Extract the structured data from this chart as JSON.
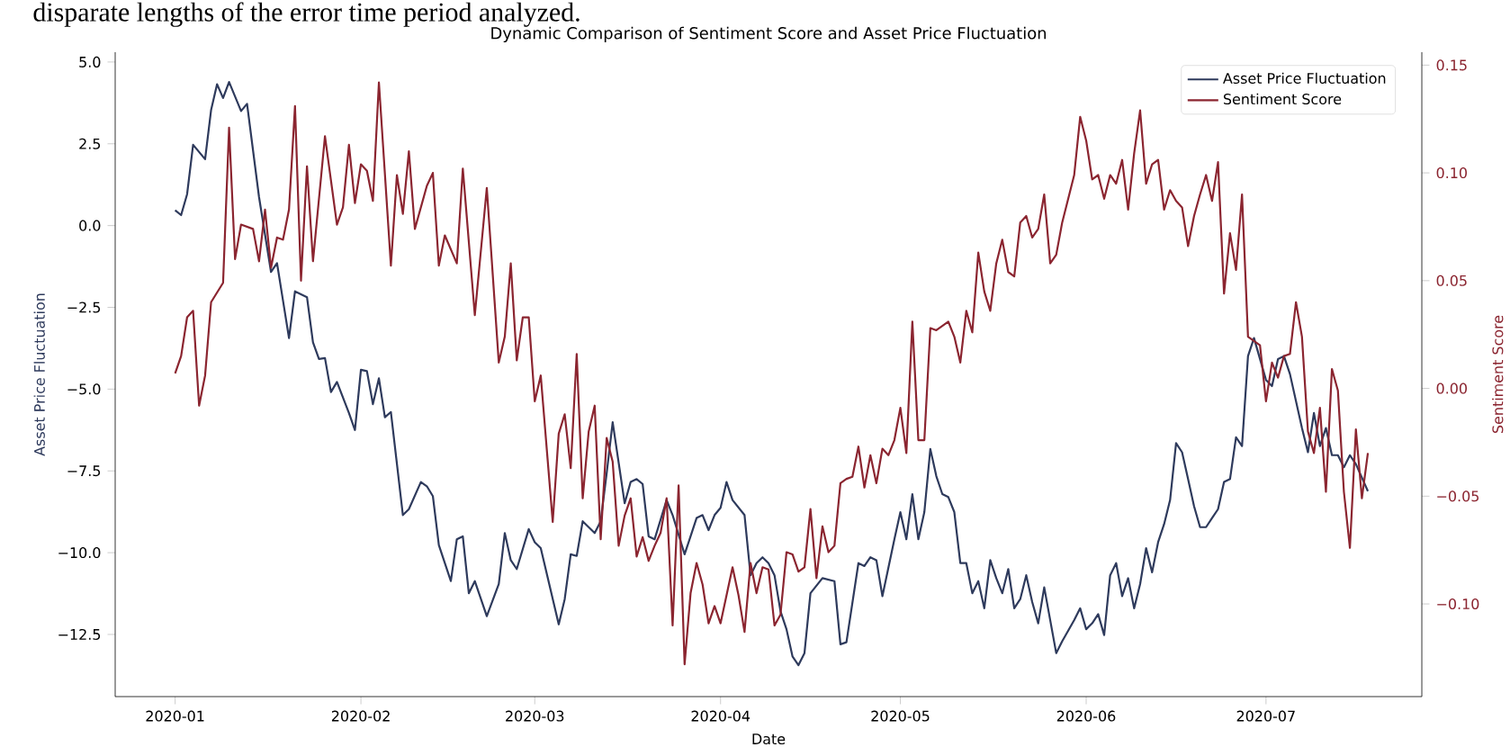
{
  "chart_data": {
    "type": "line",
    "title": "Dynamic Comparison of Sentiment Score and Asset Price Fluctuation",
    "xlabel": "Date",
    "ylabel": "Asset Price Fluctuation",
    "y2label": "Sentiment Score",
    "annotations": [
      "disparate lengths of the error time period analyzed."
    ],
    "legend": "top right",
    "marker": "none",
    "line_style": "solid",
    "xlim": [
      "2019-12-22",
      "2020-07-27"
    ],
    "xticks": [
      "2020-01",
      "2020-02",
      "2020-03",
      "2020-04",
      "2020-05",
      "2020-06",
      "2020-07"
    ],
    "ylim": [
      -14.4,
      5.3
    ],
    "yticks": [
      {
        "value": -12.5,
        "label": "−12.5"
      },
      {
        "value": -10,
        "label": "−10.0"
      },
      {
        "value": -7.5,
        "label": "−7.5"
      },
      {
        "value": -5,
        "label": "−5.0"
      },
      {
        "value": -2.5,
        "label": "−2.5"
      },
      {
        "value": 0,
        "label": "0.0"
      },
      {
        "value": 2.5,
        "label": "2.5"
      },
      {
        "value": 5,
        "label": "5.0"
      }
    ],
    "y2lim": [
      -0.143,
      0.156
    ],
    "y2ticks": [
      {
        "value": -0.1,
        "label": "−0.10"
      },
      {
        "value": -0.05,
        "label": "−0.05"
      },
      {
        "value": 0,
        "label": "0.00"
      },
      {
        "value": 0.05,
        "label": "0.05"
      },
      {
        "value": 0.1,
        "label": "0.10"
      },
      {
        "value": 0.15,
        "label": "0.15"
      }
    ],
    "series": [
      {
        "name": "Asset Price Fluctuation",
        "color": "#2e3a5c",
        "axis": "y",
        "x": [
          "2020-01-01",
          "2020-01-02",
          "2020-01-03",
          "2020-01-04",
          "2020-01-06",
          "2020-01-07",
          "2020-01-08",
          "2020-01-09",
          "2020-01-10",
          "2020-01-12",
          "2020-01-13",
          "2020-01-15",
          "2020-01-17",
          "2020-01-18",
          "2020-01-20",
          "2020-01-21",
          "2020-01-23",
          "2020-01-24",
          "2020-01-25",
          "2020-01-26",
          "2020-01-27",
          "2020-01-28",
          "2020-01-30",
          "2020-01-31",
          "2020-02-01",
          "2020-02-02",
          "2020-02-03",
          "2020-02-04",
          "2020-02-05",
          "2020-02-06",
          "2020-02-08",
          "2020-02-09",
          "2020-02-11",
          "2020-02-12",
          "2020-02-13",
          "2020-02-14",
          "2020-02-16",
          "2020-02-17",
          "2020-02-18",
          "2020-02-19",
          "2020-02-20",
          "2020-02-22",
          "2020-02-24",
          "2020-02-25",
          "2020-02-26",
          "2020-02-27",
          "2020-02-29",
          "2020-03-01",
          "2020-03-02",
          "2020-03-05",
          "2020-03-06",
          "2020-03-07",
          "2020-03-08",
          "2020-03-09",
          "2020-03-11",
          "2020-03-12",
          "2020-03-13",
          "2020-03-14",
          "2020-03-16",
          "2020-03-17",
          "2020-03-18",
          "2020-03-19",
          "2020-03-20",
          "2020-03-21",
          "2020-03-23",
          "2020-03-24",
          "2020-03-26",
          "2020-03-28",
          "2020-03-29",
          "2020-03-30",
          "2020-03-31",
          "2020-04-01",
          "2020-04-02",
          "2020-04-03",
          "2020-04-05",
          "2020-04-06",
          "2020-04-07",
          "2020-04-08",
          "2020-04-09",
          "2020-04-10",
          "2020-04-11",
          "2020-04-12",
          "2020-04-13",
          "2020-04-14",
          "2020-04-15",
          "2020-04-16",
          "2020-04-18",
          "2020-04-20",
          "2020-04-21",
          "2020-04-22",
          "2020-04-24",
          "2020-04-25",
          "2020-04-26",
          "2020-04-27",
          "2020-04-28",
          "2020-04-30",
          "2020-05-01",
          "2020-05-02",
          "2020-05-03",
          "2020-05-04",
          "2020-05-05",
          "2020-05-06",
          "2020-05-07",
          "2020-05-08",
          "2020-05-09",
          "2020-05-10",
          "2020-05-11",
          "2020-05-12",
          "2020-05-13",
          "2020-05-14",
          "2020-05-15",
          "2020-05-16",
          "2020-05-17",
          "2020-05-18",
          "2020-05-19",
          "2020-05-20",
          "2020-05-21",
          "2020-05-22",
          "2020-05-23",
          "2020-05-24",
          "2020-05-25",
          "2020-05-27",
          "2020-05-28",
          "2020-05-30",
          "2020-05-31",
          "2020-06-01",
          "2020-06-02",
          "2020-06-03",
          "2020-06-04",
          "2020-06-05",
          "2020-06-06",
          "2020-06-07",
          "2020-06-08",
          "2020-06-09",
          "2020-06-10",
          "2020-06-11",
          "2020-06-12",
          "2020-06-13",
          "2020-06-14",
          "2020-06-15",
          "2020-06-16",
          "2020-06-17",
          "2020-06-18",
          "2020-06-19",
          "2020-06-20",
          "2020-06-21",
          "2020-06-22",
          "2020-06-23",
          "2020-06-24",
          "2020-06-25",
          "2020-06-26",
          "2020-06-27",
          "2020-06-28",
          "2020-06-29",
          "2020-06-30",
          "2020-07-01",
          "2020-07-02",
          "2020-07-03",
          "2020-07-04",
          "2020-07-05",
          "2020-07-07",
          "2020-07-08",
          "2020-07-09",
          "2020-07-10",
          "2020-07-11",
          "2020-07-12",
          "2020-07-13",
          "2020-07-14",
          "2020-07-15",
          "2020-07-16",
          "2020-07-18"
        ],
        "values": [
          0.47,
          0.32,
          0.96,
          2.47,
          2.03,
          3.53,
          4.32,
          3.9,
          4.39,
          3.5,
          3.72,
          0.87,
          -1.42,
          -1.15,
          -3.44,
          -2.01,
          -2.19,
          -3.57,
          -4.08,
          -4.05,
          -5.09,
          -4.78,
          -5.73,
          -6.25,
          -4.41,
          -4.45,
          -5.46,
          -4.67,
          -5.86,
          -5.7,
          -8.85,
          -8.67,
          -7.84,
          -7.97,
          -8.27,
          -9.77,
          -10.87,
          -9.59,
          -9.5,
          -11.24,
          -10.87,
          -11.94,
          -10.96,
          -9.4,
          -10.23,
          -10.5,
          -9.28,
          -9.68,
          -9.86,
          -12.19,
          -11.42,
          -10.05,
          -10.1,
          -9.04,
          -9.4,
          -9.04,
          -7.57,
          -6.01,
          -8.49,
          -7.84,
          -7.75,
          -7.9,
          -9.5,
          -9.59,
          -8.39,
          -8.85,
          -10.05,
          -8.94,
          -8.85,
          -9.31,
          -8.85,
          -8.63,
          -7.84,
          -8.39,
          -8.85,
          -10.69,
          -10.32,
          -10.14,
          -10.32,
          -10.69,
          -11.79,
          -12.34,
          -13.17,
          -13.44,
          -13.07,
          -11.24,
          -10.78,
          -10.87,
          -12.8,
          -12.74,
          -10.32,
          -10.41,
          -10.14,
          -10.23,
          -11.33,
          -9.59,
          -8.76,
          -9.59,
          -8.21,
          -9.59,
          -8.76,
          -6.83,
          -7.66,
          -8.21,
          -8.3,
          -8.76,
          -10.32,
          -10.32,
          -11.24,
          -10.87,
          -11.7,
          -10.23,
          -10.78,
          -11.24,
          -10.5,
          -11.7,
          -11.42,
          -10.69,
          -11.51,
          -12.16,
          -11.06,
          -13.07,
          -12.71,
          -12.06,
          -11.7,
          -12.34,
          -12.16,
          -11.88,
          -12.52,
          -10.69,
          -10.32,
          -11.33,
          -10.78,
          -11.7,
          -10.96,
          -9.86,
          -10.6,
          -9.68,
          -9.13,
          -8.39,
          -6.65,
          -6.93,
          -7.75,
          -8.58,
          -9.22,
          -9.22,
          -8.94,
          -8.67,
          -7.84,
          -7.75,
          -6.47,
          -6.74,
          -3.99,
          -3.44,
          -4.08,
          -4.72,
          -4.91,
          -4.08,
          -3.99,
          -4.54,
          -6.19,
          -6.93,
          -5.73,
          -6.74,
          -6.19,
          -7.02,
          -7.02,
          -7.39,
          -7.02,
          -7.29,
          -8.12
        ]
      },
      {
        "name": "Sentiment Score",
        "color": "#8b2530",
        "axis": "y2",
        "x": [
          "2020-01-01",
          "2020-01-02",
          "2020-01-03",
          "2020-01-04",
          "2020-01-05",
          "2020-01-06",
          "2020-01-07",
          "2020-01-09",
          "2020-01-10",
          "2020-01-11",
          "2020-01-12",
          "2020-01-14",
          "2020-01-15",
          "2020-01-16",
          "2020-01-17",
          "2020-01-18",
          "2020-01-19",
          "2020-01-20",
          "2020-01-21",
          "2020-01-22",
          "2020-01-23",
          "2020-01-24",
          "2020-01-26",
          "2020-01-28",
          "2020-01-29",
          "2020-01-30",
          "2020-01-31",
          "2020-02-01",
          "2020-02-02",
          "2020-02-03",
          "2020-02-04",
          "2020-02-06",
          "2020-02-07",
          "2020-02-08",
          "2020-02-09",
          "2020-02-10",
          "2020-02-12",
          "2020-02-13",
          "2020-02-14",
          "2020-02-15",
          "2020-02-17",
          "2020-02-18",
          "2020-02-20",
          "2020-02-22",
          "2020-02-24",
          "2020-02-25",
          "2020-02-26",
          "2020-02-27",
          "2020-02-28",
          "2020-02-29",
          "2020-03-01",
          "2020-03-02",
          "2020-03-04",
          "2020-03-05",
          "2020-03-06",
          "2020-03-07",
          "2020-03-08",
          "2020-03-09",
          "2020-03-10",
          "2020-03-11",
          "2020-03-12",
          "2020-03-13",
          "2020-03-14",
          "2020-03-15",
          "2020-03-16",
          "2020-03-17",
          "2020-03-18",
          "2020-03-19",
          "2020-03-20",
          "2020-03-21",
          "2020-03-22",
          "2020-03-23",
          "2020-03-24",
          "2020-03-25",
          "2020-03-26",
          "2020-03-27",
          "2020-03-28",
          "2020-03-29",
          "2020-03-30",
          "2020-03-31",
          "2020-04-01",
          "2020-04-03",
          "2020-04-04",
          "2020-04-05",
          "2020-04-06",
          "2020-04-07",
          "2020-04-08",
          "2020-04-09",
          "2020-04-10",
          "2020-04-11",
          "2020-04-12",
          "2020-04-13",
          "2020-04-14",
          "2020-04-15",
          "2020-04-16",
          "2020-04-17",
          "2020-04-18",
          "2020-04-19",
          "2020-04-20",
          "2020-04-21",
          "2020-04-22",
          "2020-04-23",
          "2020-04-24",
          "2020-04-25",
          "2020-04-26",
          "2020-04-27",
          "2020-04-28",
          "2020-04-29",
          "2020-04-30",
          "2020-05-01",
          "2020-05-02",
          "2020-05-03",
          "2020-05-04",
          "2020-05-05",
          "2020-05-06",
          "2020-05-07",
          "2020-05-08",
          "2020-05-09",
          "2020-05-10",
          "2020-05-11",
          "2020-05-12",
          "2020-05-13",
          "2020-05-14",
          "2020-05-15",
          "2020-05-16",
          "2020-05-17",
          "2020-05-18",
          "2020-05-19",
          "2020-05-20",
          "2020-05-21",
          "2020-05-22",
          "2020-05-23",
          "2020-05-24",
          "2020-05-25",
          "2020-05-26",
          "2020-05-27",
          "2020-05-28",
          "2020-05-30",
          "2020-05-31",
          "2020-06-01",
          "2020-06-02",
          "2020-06-03",
          "2020-06-04",
          "2020-06-05",
          "2020-06-06",
          "2020-06-07",
          "2020-06-08",
          "2020-06-09",
          "2020-06-10",
          "2020-06-11",
          "2020-06-12",
          "2020-06-13",
          "2020-06-14",
          "2020-06-15",
          "2020-06-16",
          "2020-06-17",
          "2020-06-18",
          "2020-06-19",
          "2020-06-20",
          "2020-06-21",
          "2020-06-22",
          "2020-06-23",
          "2020-06-24",
          "2020-06-25",
          "2020-06-26",
          "2020-06-27",
          "2020-06-28",
          "2020-06-29",
          "2020-06-30",
          "2020-07-01",
          "2020-07-02",
          "2020-07-03",
          "2020-07-04",
          "2020-07-05",
          "2020-07-06",
          "2020-07-07",
          "2020-07-08",
          "2020-07-09",
          "2020-07-10",
          "2020-07-11",
          "2020-07-12",
          "2020-07-13",
          "2020-07-14",
          "2020-07-15",
          "2020-07-16",
          "2020-07-17",
          "2020-07-18"
        ],
        "values": [
          0.007,
          0.015,
          0.033,
          0.036,
          -0.008,
          0.006,
          0.04,
          0.049,
          0.121,
          0.06,
          0.076,
          0.074,
          0.059,
          0.083,
          0.056,
          0.07,
          0.069,
          0.083,
          0.131,
          0.05,
          0.103,
          0.059,
          0.117,
          0.076,
          0.084,
          0.113,
          0.086,
          0.104,
          0.101,
          0.087,
          0.142,
          0.057,
          0.099,
          0.081,
          0.11,
          0.074,
          0.094,
          0.1,
          0.057,
          0.071,
          0.058,
          0.102,
          0.034,
          0.093,
          0.012,
          0.024,
          0.058,
          0.013,
          0.033,
          0.033,
          -0.006,
          0.006,
          -0.062,
          -0.021,
          -0.012,
          -0.037,
          0.016,
          -0.051,
          -0.02,
          -0.008,
          -0.07,
          -0.023,
          -0.034,
          -0.073,
          -0.059,
          -0.051,
          -0.078,
          -0.069,
          -0.08,
          -0.073,
          -0.067,
          -0.051,
          -0.11,
          -0.045,
          -0.128,
          -0.095,
          -0.081,
          -0.091,
          -0.109,
          -0.101,
          -0.109,
          -0.083,
          -0.096,
          -0.113,
          -0.081,
          -0.095,
          -0.083,
          -0.084,
          -0.11,
          -0.105,
          -0.076,
          -0.077,
          -0.085,
          -0.083,
          -0.056,
          -0.088,
          -0.064,
          -0.076,
          -0.073,
          -0.044,
          -0.042,
          -0.041,
          -0.027,
          -0.046,
          -0.031,
          -0.044,
          -0.028,
          -0.031,
          -0.024,
          -0.009,
          -0.03,
          0.031,
          -0.024,
          -0.024,
          0.028,
          0.027,
          0.029,
          0.031,
          0.024,
          0.012,
          0.036,
          0.026,
          0.063,
          0.045,
          0.036,
          0.058,
          0.069,
          0.054,
          0.052,
          0.077,
          0.08,
          0.07,
          0.074,
          0.09,
          0.058,
          0.062,
          0.077,
          0.099,
          0.126,
          0.115,
          0.097,
          0.099,
          0.088,
          0.099,
          0.095,
          0.106,
          0.083,
          0.109,
          0.129,
          0.095,
          0.104,
          0.106,
          0.083,
          0.092,
          0.087,
          0.084,
          0.066,
          0.08,
          0.09,
          0.099,
          0.087,
          0.105,
          0.044,
          0.072,
          0.055,
          0.09,
          0.024,
          0.022,
          0.02,
          -0.006,
          0.012,
          0.005,
          0.015,
          0.016,
          0.04,
          0.024,
          -0.02,
          -0.03,
          -0.009,
          -0.048,
          0.009,
          -0.001,
          -0.048,
          -0.074,
          -0.019,
          -0.051,
          -0.03
        ]
      }
    ]
  }
}
